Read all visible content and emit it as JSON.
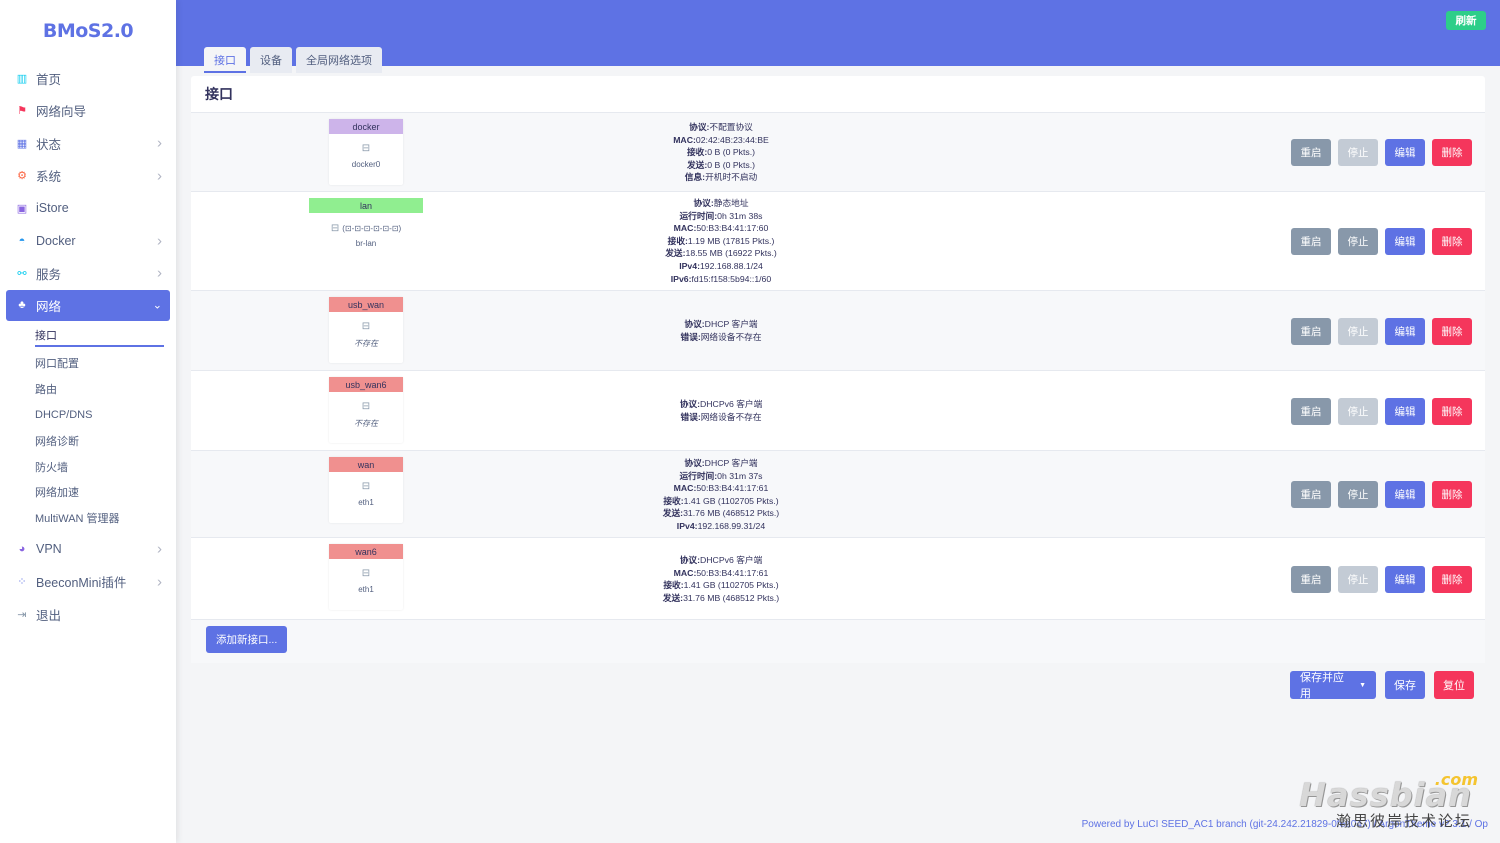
{
  "brand": "BMoS2.0",
  "sidebar": {
    "items": [
      {
        "label": "首页",
        "icon": "dashboard-icon",
        "color": "#11cdef",
        "chevron": false
      },
      {
        "label": "网络向导",
        "icon": "wizard-icon",
        "color": "#f5365c",
        "chevron": false
      },
      {
        "label": "状态",
        "icon": "grid-icon",
        "color": "#5e72e4",
        "chevron": true
      },
      {
        "label": "系统",
        "icon": "gear-icon",
        "color": "#fb6340",
        "chevron": true
      },
      {
        "label": "iStore",
        "icon": "bag-icon",
        "color": "#8965e0",
        "chevron": false
      },
      {
        "label": "Docker",
        "icon": "docker-icon",
        "color": "#2496ed",
        "chevron": true
      },
      {
        "label": "服务",
        "icon": "services-icon",
        "color": "#11cdef",
        "chevron": true
      },
      {
        "label": "网络",
        "icon": "network-icon",
        "color": "#ffffff",
        "chevron": true,
        "active": true
      },
      {
        "label": "VPN",
        "icon": "vpn-icon",
        "color": "#8965e0",
        "chevron": true
      },
      {
        "label": "BeeconMini插件",
        "icon": "plugin-icon",
        "color": "#5e72e4",
        "chevron": true
      },
      {
        "label": "退出",
        "icon": "logout-icon",
        "color": "#8898aa",
        "chevron": false
      }
    ],
    "network_sub": [
      "接口",
      "网口配置",
      "路由",
      "DHCP/DNS",
      "网络诊断",
      "防火墙",
      "网络加速",
      "MultiWAN 管理器"
    ]
  },
  "header": {
    "refresh": "刷新",
    "tabs": [
      "接口",
      "设备",
      "全局网络选项"
    ]
  },
  "panel": {
    "title": "接口",
    "interfaces": [
      {
        "name": "docker",
        "color": "#cdb4ea",
        "device": "docker0",
        "missing": false,
        "stop_disabled": true,
        "lines": [
          [
            "协议:",
            "不配置协议"
          ],
          [
            "MAC:",
            "02:42:4B:23:44:BE"
          ],
          [
            "接收:",
            "0 B (0 Pkts.)"
          ],
          [
            "发送:",
            "0 B (0 Pkts.)"
          ],
          [
            "信息:",
            "开机时不启动"
          ]
        ]
      },
      {
        "name": "lan",
        "color": "#90ee90",
        "device": "br-lan",
        "missing": false,
        "stop_disabled": false,
        "bridge": "(⊡-⊡-⊡-⊡-⊡-⊡)",
        "lines": [
          [
            "协议:",
            "静态地址"
          ],
          [
            "运行时间:",
            "0h 31m 38s"
          ],
          [
            "MAC:",
            "50:B3:B4:41:17:60"
          ],
          [
            "接收:",
            "1.19 MB (17815 Pkts.)"
          ],
          [
            "发送:",
            "18.55 MB (16922 Pkts.)"
          ],
          [
            "IPv4:",
            "192.168.88.1/24"
          ],
          [
            "IPv6:",
            "fd15:f158:5b94::1/60"
          ]
        ]
      },
      {
        "name": "usb_wan",
        "color": "#f0908f",
        "device": "不存在",
        "missing": true,
        "stop_disabled": true,
        "lines": [
          [
            "协议:",
            "DHCP 客户端"
          ],
          [
            "错误:",
            "网络设备不存在"
          ]
        ]
      },
      {
        "name": "usb_wan6",
        "color": "#f0908f",
        "device": "不存在",
        "missing": true,
        "stop_disabled": true,
        "lines": [
          [
            "协议:",
            "DHCPv6 客户端"
          ],
          [
            "错误:",
            "网络设备不存在"
          ]
        ]
      },
      {
        "name": "wan",
        "color": "#f0908f",
        "device": "eth1",
        "missing": false,
        "stop_disabled": false,
        "lines": [
          [
            "协议:",
            "DHCP 客户端"
          ],
          [
            "运行时间:",
            "0h 31m 37s"
          ],
          [
            "MAC:",
            "50:B3:B4:41:17:61"
          ],
          [
            "接收:",
            "1.41 GB (1102705 Pkts.)"
          ],
          [
            "发送:",
            "31.76 MB (468512 Pkts.)"
          ],
          [
            "IPv4:",
            "192.168.99.31/24"
          ]
        ]
      },
      {
        "name": "wan6",
        "color": "#f0908f",
        "device": "eth1",
        "missing": false,
        "stop_disabled": true,
        "lines": [
          [
            "协议:",
            "DHCPv6 客户端"
          ],
          [
            "MAC:",
            "50:B3:B4:41:17:61"
          ],
          [
            "接收:",
            "1.41 GB (1102705 Pkts.)"
          ],
          [
            "发送:",
            "31.76 MB (468512 Pkts.)"
          ]
        ]
      }
    ],
    "actions": {
      "restart": "重启",
      "stop": "停止",
      "edit": "编辑",
      "delete": "删除"
    },
    "add_interface": "添加新接口..."
  },
  "bottom": {
    "save_apply": "保存并应用",
    "save": "保存",
    "reset": "复位"
  },
  "footer": "Powered by LuCI SEED_AC1 branch (git-24.242.21829-0fea047) / ArgonTheme v2.3.1 / Op",
  "watermark": {
    "main": "Hassbian",
    "com": ".com",
    "sub": "瀚思彼岸技术论坛"
  }
}
